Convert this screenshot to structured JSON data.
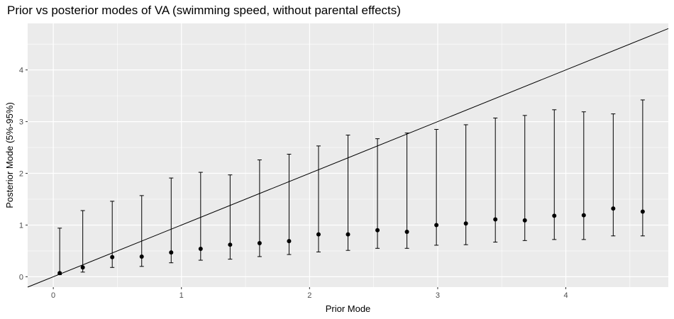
{
  "chart_data": {
    "type": "scatter",
    "title": "Prior vs posterior modes of VA (swimming speed, without parental effects)",
    "xlabel": "Prior Mode",
    "ylabel": "Posterior Mode (5%-95%)",
    "xlim": [
      -0.2,
      4.8
    ],
    "ylim": [
      -0.2,
      4.9
    ],
    "x_ticks": [
      0,
      1,
      2,
      3,
      4
    ],
    "y_ticks": [
      0,
      1,
      2,
      3,
      4
    ],
    "grid": true,
    "reference_line": {
      "type": "identity",
      "slope": 1,
      "intercept": 0
    },
    "points": [
      {
        "x": 0.05,
        "y": 0.07,
        "lower": 0.04,
        "upper": 0.94
      },
      {
        "x": 0.23,
        "y": 0.18,
        "lower": 0.09,
        "upper": 1.28
      },
      {
        "x": 0.46,
        "y": 0.38,
        "lower": 0.18,
        "upper": 1.46
      },
      {
        "x": 0.69,
        "y": 0.39,
        "lower": 0.2,
        "upper": 1.57
      },
      {
        "x": 0.92,
        "y": 0.47,
        "lower": 0.27,
        "upper": 1.91
      },
      {
        "x": 1.15,
        "y": 0.54,
        "lower": 0.32,
        "upper": 2.02
      },
      {
        "x": 1.38,
        "y": 0.62,
        "lower": 0.34,
        "upper": 1.97
      },
      {
        "x": 1.61,
        "y": 0.65,
        "lower": 0.39,
        "upper": 2.26
      },
      {
        "x": 1.84,
        "y": 0.69,
        "lower": 0.43,
        "upper": 2.37
      },
      {
        "x": 2.07,
        "y": 0.82,
        "lower": 0.48,
        "upper": 2.53
      },
      {
        "x": 2.3,
        "y": 0.82,
        "lower": 0.51,
        "upper": 2.74
      },
      {
        "x": 2.53,
        "y": 0.9,
        "lower": 0.55,
        "upper": 2.67
      },
      {
        "x": 2.76,
        "y": 0.87,
        "lower": 0.55,
        "upper": 2.78
      },
      {
        "x": 2.99,
        "y": 1.0,
        "lower": 0.61,
        "upper": 2.85
      },
      {
        "x": 3.22,
        "y": 1.03,
        "lower": 0.62,
        "upper": 2.94
      },
      {
        "x": 3.45,
        "y": 1.11,
        "lower": 0.67,
        "upper": 3.07
      },
      {
        "x": 3.68,
        "y": 1.09,
        "lower": 0.7,
        "upper": 3.12
      },
      {
        "x": 3.91,
        "y": 1.18,
        "lower": 0.72,
        "upper": 3.23
      },
      {
        "x": 4.14,
        "y": 1.19,
        "lower": 0.72,
        "upper": 3.19
      },
      {
        "x": 4.37,
        "y": 1.32,
        "lower": 0.79,
        "upper": 3.15
      },
      {
        "x": 4.6,
        "y": 1.26,
        "lower": 0.79,
        "upper": 3.42
      }
    ],
    "colors": {
      "panel": "#ebebeb",
      "grid": "#ffffff",
      "point": "#000000"
    }
  }
}
